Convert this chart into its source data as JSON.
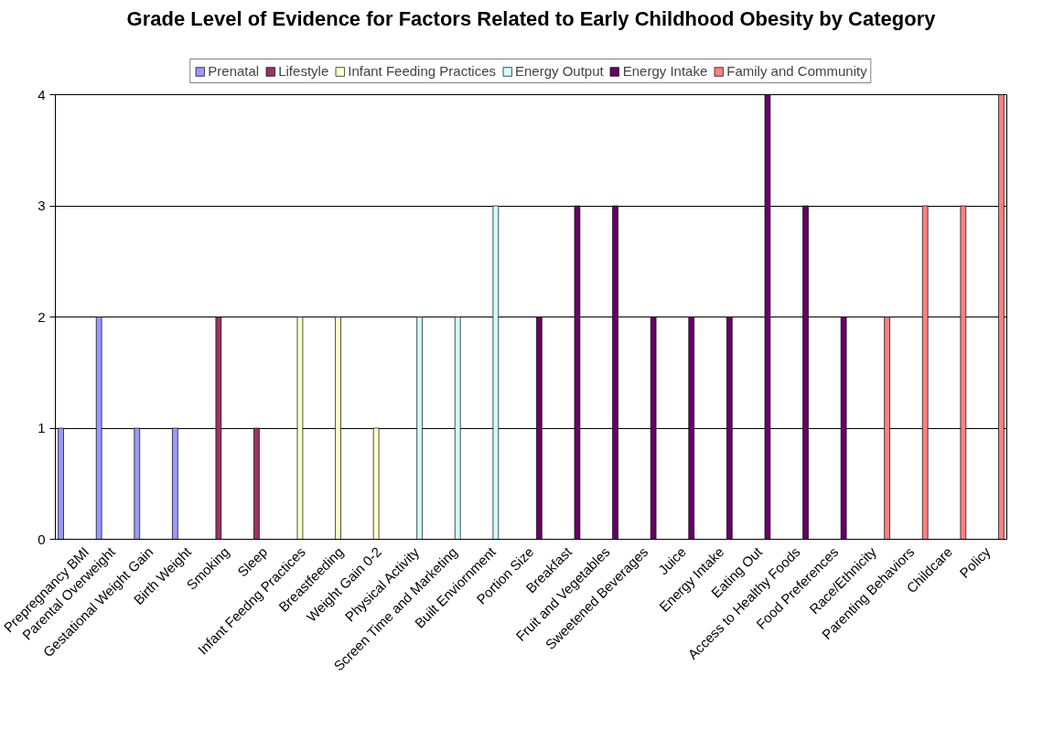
{
  "chart_data": {
    "type": "bar",
    "title": "Grade Level of Evidence for Factors Related to Early Childhood Obesity by Category",
    "categories": [
      "Prepregnancy BMI",
      "Parental Overweight",
      "Gestational Weight Gain",
      "Birth Weight",
      "Smoking",
      "Sleep",
      "Infant Feedng Practices",
      "Breastfeeding",
      "Weight Gain 0-2",
      "Physical Activity",
      "Screen Time and Marketing",
      "Built Enviornment",
      "Portion Size",
      "Breakfast",
      "Fruit and Vegetables",
      "Sweetened Beverages",
      "Juice",
      "Energy Intake",
      "Eating Out",
      "Access to Healthy Foods",
      "Food Preferences",
      "Race/Ethnicity",
      "Parenting Behaviors",
      "Childcare",
      "Policy"
    ],
    "series": [
      {
        "name": "Prenatal",
        "color": "#9999ff",
        "values": [
          1,
          2,
          1,
          1,
          null,
          null,
          null,
          null,
          null,
          null,
          null,
          null,
          null,
          null,
          null,
          null,
          null,
          null,
          null,
          null,
          null,
          null,
          null,
          null,
          null
        ]
      },
      {
        "name": "Lifestyle",
        "color": "#993366",
        "values": [
          null,
          null,
          null,
          null,
          2,
          1,
          null,
          null,
          null,
          null,
          null,
          null,
          null,
          null,
          null,
          null,
          null,
          null,
          null,
          null,
          null,
          null,
          null,
          null,
          null
        ]
      },
      {
        "name": "Infant Feeding Practices",
        "color": "#ffffcc",
        "values": [
          null,
          null,
          null,
          null,
          null,
          null,
          2,
          2,
          1,
          null,
          null,
          null,
          null,
          null,
          null,
          null,
          null,
          null,
          null,
          null,
          null,
          null,
          null,
          null,
          null
        ]
      },
      {
        "name": "Energy Output",
        "color": "#ccffff",
        "values": [
          null,
          null,
          null,
          null,
          null,
          null,
          null,
          null,
          null,
          2,
          2,
          3,
          null,
          null,
          null,
          null,
          null,
          null,
          null,
          null,
          null,
          null,
          null,
          null,
          null
        ]
      },
      {
        "name": "Energy Intake",
        "color": "#660066",
        "values": [
          null,
          null,
          null,
          null,
          null,
          null,
          null,
          null,
          null,
          null,
          null,
          null,
          2,
          3,
          3,
          2,
          2,
          2,
          4,
          3,
          2,
          null,
          null,
          null,
          null
        ]
      },
      {
        "name": "Family and Community",
        "color": "#ff8080",
        "values": [
          null,
          null,
          null,
          null,
          null,
          null,
          null,
          null,
          null,
          null,
          null,
          null,
          null,
          null,
          null,
          null,
          null,
          null,
          null,
          null,
          null,
          2,
          3,
          3,
          4
        ]
      }
    ],
    "ylim": [
      0,
      4
    ],
    "yticks": [
      0,
      1,
      2,
      3,
      4
    ],
    "grid": "y",
    "legend": "top"
  }
}
